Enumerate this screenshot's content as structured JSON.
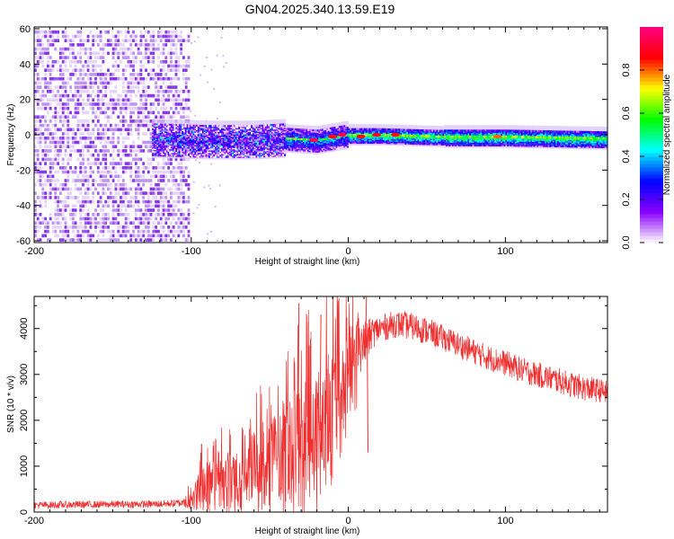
{
  "title": "GN04.2025.340.13.59.E19",
  "chart_data": [
    {
      "type": "heatmap",
      "name": "spectrogram",
      "xlabel": "Height of straight line (km)",
      "ylabel": "Frequency (Hz)",
      "xlim": [
        -200,
        165
      ],
      "ylim": [
        -61,
        61
      ],
      "xticks": [
        -200,
        -100,
        0,
        100
      ],
      "yticks": [
        60,
        40,
        20,
        0,
        -20,
        -40,
        -60
      ],
      "colorbar": {
        "label": "Normalized spectral amplitude",
        "range": [
          0,
          1
        ],
        "ticks": [
          "0.0",
          "0.2",
          "0.4",
          "0.6",
          "0.8"
        ],
        "colormap": [
          "#ffffff",
          "#8a00ff",
          "#0000ff",
          "#00ffff",
          "#00ff00",
          "#ffff00",
          "#ff0000",
          "#ff0080"
        ]
      },
      "regions": [
        {
          "x_range": [
            -200,
            -102
          ],
          "freq_range": [
            -61,
            61
          ],
          "amplitude_range": [
            0.0,
            0.1
          ],
          "description": "broadband noise"
        },
        {
          "x_range": [
            -125,
            -40
          ],
          "freq_range": [
            -12,
            8
          ],
          "amplitude_range": [
            0.1,
            0.35
          ]
        },
        {
          "x_range": [
            -40,
            165
          ],
          "freq_range": [
            -6,
            5
          ],
          "amplitude_range": [
            0.3,
            1.0
          ]
        }
      ],
      "centerline": {
        "x": [
          -125,
          -90,
          -60,
          -40,
          -20,
          0,
          20,
          60,
          100,
          165
        ],
        "freq": [
          -2,
          -3,
          -3,
          -2,
          -3,
          0,
          0,
          -1,
          -1,
          -2
        ]
      },
      "peaks": [
        {
          "x": -22,
          "freq": -3,
          "amplitude": 0.95
        },
        {
          "x": -10,
          "freq": -1,
          "amplitude": 0.9
        },
        {
          "x": -4,
          "freq": 0,
          "amplitude": 0.95
        },
        {
          "x": 8,
          "freq": -1,
          "amplitude": 0.85
        },
        {
          "x": 18,
          "freq": 0,
          "amplitude": 0.9
        },
        {
          "x": 30,
          "freq": 0,
          "amplitude": 0.85
        },
        {
          "x": 95,
          "freq": -1,
          "amplitude": 0.8
        }
      ]
    },
    {
      "type": "line",
      "name": "snr",
      "xlabel": "Height of straight line (km)",
      "ylabel": "SNR (10 * v/v)",
      "xlim": [
        -200,
        165
      ],
      "ylim": [
        0,
        4700
      ],
      "xticks": [
        -200,
        -100,
        0,
        100
      ],
      "yticks": [
        0,
        1000,
        2000,
        3000,
        4000
      ],
      "series": [
        {
          "name": "SNR",
          "color": "#f03030",
          "x": [
            -200,
            -180,
            -160,
            -140,
            -120,
            -105,
            -100,
            -95,
            -90,
            -85,
            -80,
            -70,
            -60,
            -50,
            -40,
            -30,
            -20,
            -10,
            -5,
            0,
            5,
            10,
            15,
            20,
            25,
            30,
            40,
            50,
            60,
            70,
            80,
            90,
            100,
            110,
            120,
            130,
            140,
            150,
            160,
            165
          ],
          "base": [
            150,
            160,
            165,
            170,
            175,
            200,
            280,
            520,
            580,
            620,
            660,
            720,
            900,
            1100,
            1200,
            1400,
            1700,
            2100,
            2500,
            2900,
            3300,
            3650,
            3900,
            4000,
            4050,
            4100,
            4050,
            3950,
            3800,
            3650,
            3500,
            3350,
            3250,
            3100,
            3000,
            2900,
            2800,
            2700,
            2650,
            2600
          ],
          "noise": [
            80,
            80,
            80,
            80,
            80,
            90,
            250,
            500,
            550,
            600,
            650,
            700,
            900,
            1000,
            1200,
            1500,
            1500,
            1500,
            1300,
            1200,
            1000,
            500,
            350,
            300,
            300,
            300,
            300,
            300,
            280,
            280,
            280,
            280,
            280,
            280,
            280,
            280,
            280,
            280,
            260,
            260
          ],
          "spikes": [
            {
              "x": -32,
              "y": 4550
            },
            {
              "x": -26,
              "y": 4150
            },
            {
              "x": -18,
              "y": 4300
            },
            {
              "x": 11,
              "y": 4700
            },
            {
              "x": 12,
              "y": 1300
            }
          ]
        }
      ]
    }
  ]
}
